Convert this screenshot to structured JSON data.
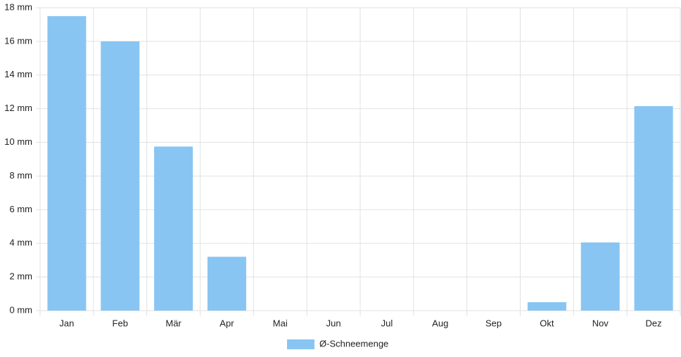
{
  "chart_data": {
    "type": "bar",
    "categories": [
      "Jan",
      "Feb",
      "Mär",
      "Apr",
      "Mai",
      "Jun",
      "Jul",
      "Aug",
      "Sep",
      "Okt",
      "Nov",
      "Dez"
    ],
    "series": [
      {
        "name": "Ø-Schneemenge",
        "color": "#88c5f2",
        "values": [
          17.5,
          16,
          9.75,
          3.2,
          0,
          0,
          0,
          0,
          0,
          0.5,
          4.05,
          12.15
        ]
      }
    ],
    "ylim": [
      0,
      18
    ],
    "yticks": [
      {
        "value": 0,
        "label": "0 mm"
      },
      {
        "value": 2,
        "label": "2 mm"
      },
      {
        "value": 4,
        "label": "4 mm"
      },
      {
        "value": 6,
        "label": "6 mm"
      },
      {
        "value": 8,
        "label": "8 mm"
      },
      {
        "value": 10,
        "label": "10 mm"
      },
      {
        "value": 12,
        "label": "12 mm"
      },
      {
        "value": 14,
        "label": "14 mm"
      },
      {
        "value": 16,
        "label": "16 mm"
      },
      {
        "value": 18,
        "label": "18 mm"
      }
    ],
    "grid": true,
    "legend": "bottom"
  }
}
